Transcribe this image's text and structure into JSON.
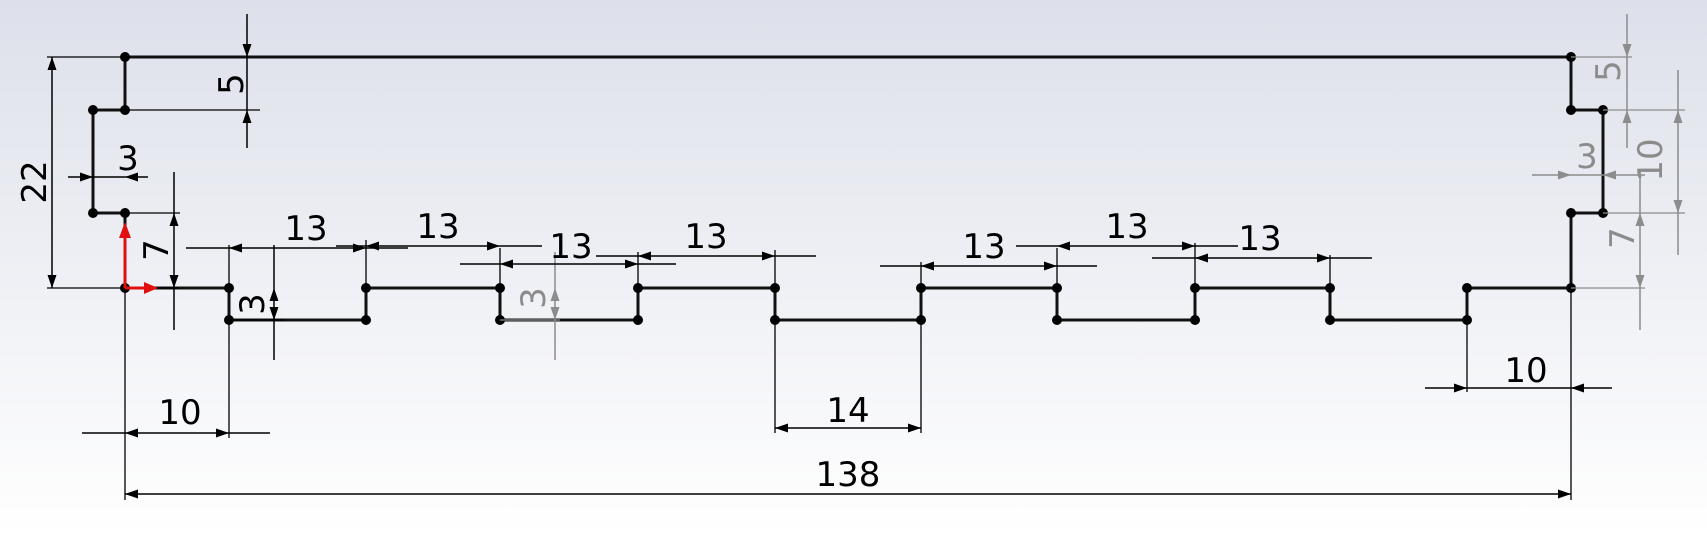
{
  "colors": {
    "background_top": "#dde0ea",
    "background_bottom": "#ffffff",
    "profile_line": "#111111",
    "vertex_point": "#000000",
    "dimension_active": "#000000",
    "dimension_driven": "#8c8c8c",
    "origin_arrow": "#e01010"
  },
  "dimensions": {
    "overall_width": "138",
    "overall_height": "22",
    "left_top_step": "5",
    "left_tab_depth": "3",
    "left_lower_height": "7",
    "left_offset": "10",
    "first_step_depth": "3",
    "second_step_depth": "3",
    "center_gap": "14",
    "right_offset": "10",
    "right_top_step": "5",
    "right_tab_depth": "3",
    "right_tab_height": "10",
    "right_lower_height": "7",
    "pitches": [
      "13",
      "13",
      "13",
      "13",
      "13",
      "13",
      "13"
    ]
  }
}
